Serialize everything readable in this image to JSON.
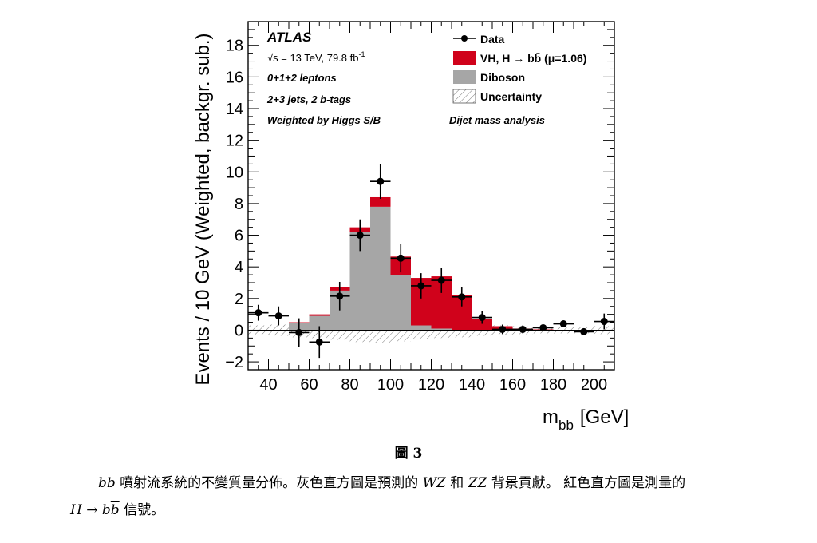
{
  "chart_data": {
    "type": "bar",
    "stacked": true,
    "xlabel": "m",
    "xlabel_sub": "bb",
    "xlabel_unit": "[GeV]",
    "ylabel": "Events / 10 GeV (Weighted, backgr. sub.)",
    "xlim": [
      30,
      210
    ],
    "ylim": [
      -2.5,
      19.5
    ],
    "x_ticks": [
      40,
      60,
      80,
      100,
      120,
      140,
      160,
      180,
      200
    ],
    "y_ticks": [
      -2,
      0,
      2,
      4,
      6,
      8,
      10,
      12,
      14,
      16,
      18
    ],
    "bin_edges": [
      30,
      40,
      50,
      60,
      70,
      80,
      90,
      100,
      110,
      120,
      130,
      140,
      150,
      160,
      170,
      180,
      190,
      200,
      210
    ],
    "series": [
      {
        "name": "Diboson",
        "color": "#a6a6a6",
        "values": [
          0.0,
          0.0,
          0.45,
          0.9,
          2.5,
          6.2,
          7.8,
          3.5,
          0.3,
          0.1,
          0.0,
          0.0,
          0.0,
          0.0,
          0.0,
          0.0,
          0.0,
          0.0
        ]
      },
      {
        "name": "VH, H → bb̄ (μ=1.06)",
        "color": "#d0021b",
        "values": [
          0.0,
          0.0,
          0.05,
          0.1,
          0.2,
          0.3,
          0.6,
          1.15,
          3.0,
          3.3,
          2.2,
          0.7,
          0.25,
          0.1,
          0.05,
          0.0,
          0.0,
          0.0
        ]
      }
    ],
    "data_points": {
      "name": "Data",
      "x": [
        35,
        45,
        55,
        65,
        75,
        85,
        95,
        105,
        115,
        125,
        135,
        145,
        155,
        165,
        175,
        185,
        195,
        205
      ],
      "y": [
        1.1,
        0.9,
        -0.15,
        -0.75,
        2.15,
        6.0,
        9.4,
        4.55,
        2.8,
        3.15,
        2.1,
        0.8,
        0.05,
        0.05,
        0.15,
        0.4,
        -0.1,
        0.55
      ],
      "err": [
        0.5,
        0.6,
        0.9,
        1.0,
        0.9,
        1.0,
        1.1,
        0.9,
        0.8,
        0.8,
        0.6,
        0.4,
        0.3,
        0.25,
        0.2,
        0.2,
        0.2,
        0.5
      ]
    },
    "uncertainty": {
      "name": "Uncertainty",
      "values": [
        0.3,
        0.35,
        0.45,
        0.5,
        0.6,
        0.75,
        0.8,
        0.7,
        0.55,
        0.5,
        0.45,
        0.35,
        0.3,
        0.25,
        0.2,
        0.2,
        0.2,
        0.25
      ]
    },
    "legend": {
      "placement": "top-right",
      "items": [
        {
          "label_main": "Data",
          "label_sub": "",
          "label_tail": ""
        },
        {
          "label_main": "VH, H  → bb̄ (μ=1.06)",
          "label_sub": "",
          "label_tail": ""
        },
        {
          "label_main": "Diboson",
          "label_sub": "",
          "label_tail": ""
        },
        {
          "label_main": "Uncertainty",
          "label_sub": "",
          "label_tail": ""
        }
      ]
    },
    "annotations": {
      "experiment": "ATLAS",
      "energy": "√s = 13 TeV, 79.8 fb",
      "energy_sup": "-1",
      "channel": "0+1+2 leptons",
      "jets": "2+3 jets, 2 b-tags",
      "weighting": "Weighted by Higgs S/B",
      "analysis": "Dijet mass analysis"
    }
  },
  "caption": {
    "figure_label": "圖 3",
    "line1_var": "bb",
    "line1_a": " 噴射流系統的不變質量分佈。灰色直方圖是預測的 ",
    "line1_wz": "WZ",
    "line1_b": " 和 ",
    "line1_zz": "ZZ",
    "line1_c": " 背景貢獻。 紅色直方圖是測量的",
    "line2_h": "H",
    "line2_arrow": " → ",
    "line2_b": "b",
    "line2_bbar": "b",
    "line2_tail": " 信號。"
  }
}
